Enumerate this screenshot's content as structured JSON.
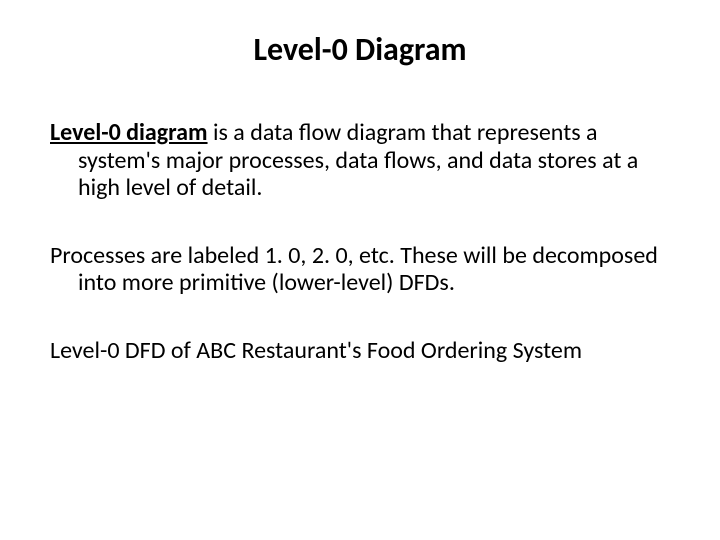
{
  "slide": {
    "title": "Level-0 Diagram",
    "title_fontsize": 32,
    "title_weight": "bold",
    "body_fontsize": 24,
    "background_color": "#ffffff",
    "text_color": "#000000",
    "font_family": "Calibri, Arial, sans-serif",
    "paragraphs": [
      {
        "lead": "Level-0 diagram",
        "lead_bold": true,
        "lead_underline": true,
        "rest": " is a data flow diagram that represents a system's major processes, data flows, and data stores at a high level of detail."
      },
      {
        "lead": "",
        "rest": "Processes are labeled 1. 0, 2. 0, etc. These will be decomposed into more primitive (lower-level) DFDs."
      },
      {
        "lead": "",
        "rest": "Level-0 DFD of ABC Restaurant's Food Ordering System"
      }
    ]
  }
}
